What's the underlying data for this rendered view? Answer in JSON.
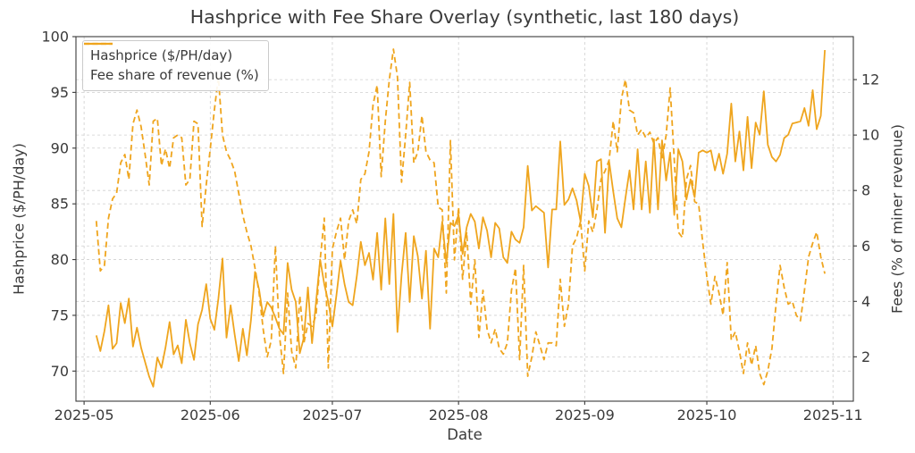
{
  "figure": {
    "title": "Hashprice with Fee Share Overlay (synthetic, last 180 days)",
    "xlabel": "Date",
    "ylabel_left": "Hashprice ($/PH/day)",
    "ylabel_right": "Fees (% of miner revenue)"
  },
  "legend": {
    "position": "upper left",
    "items": [
      {
        "label": "Hashprice ($/PH/day)",
        "style": "solid"
      },
      {
        "label": "Fee share of revenue (%)",
        "style": "dashed"
      }
    ]
  },
  "colors": {
    "line": "#EFA51E",
    "grid": "#cfcfcf",
    "spine": "#3b3b3b",
    "text": "#3a3a3a",
    "background": "#ffffff"
  },
  "chart_data": {
    "type": "line",
    "title": "Hashprice with Fee Share Overlay (synthetic, last 180 days)",
    "xlabel": "Date",
    "ylabel_left": "Hashprice ($/PH/day)",
    "ylabel_right": "Fees (% of miner revenue)",
    "grid": true,
    "x_start_date": "2025-05-04",
    "x_days_span": 180,
    "x_tick_labels": [
      "2025-05",
      "2025-06",
      "2025-07",
      "2025-08",
      "2025-09",
      "2025-10",
      "2025-11"
    ],
    "x_tick_days": [
      0,
      31,
      61,
      92,
      123,
      153,
      184
    ],
    "xlim_days": [
      -2,
      189
    ],
    "ylim_left": [
      67.3,
      100
    ],
    "yticks_left": [
      70,
      75,
      80,
      85,
      90,
      95,
      100
    ],
    "ylim_right": [
      0.4,
      13.55
    ],
    "yticks_right": [
      2,
      4,
      6,
      8,
      10,
      12
    ],
    "series": [
      {
        "name": "Hashprice ($/PH/day)",
        "axis": "left",
        "style": "solid",
        "start_day": 3,
        "values": [
          73.2,
          71.8,
          73.6,
          75.9,
          72.0,
          72.5,
          76.1,
          74.3,
          76.5,
          72.2,
          73.9,
          72.1,
          70.8,
          69.5,
          68.6,
          71.2,
          70.3,
          72.1,
          74.4,
          71.5,
          72.3,
          70.7,
          74.6,
          72.5,
          71.0,
          74.2,
          75.5,
          77.8,
          74.7,
          73.7,
          76.5,
          80.1,
          73.0,
          75.9,
          73.3,
          70.9,
          73.8,
          71.4,
          74.6,
          78.9,
          77.3,
          74.9,
          76.2,
          75.7,
          74.8,
          73.8,
          73.3,
          79.7,
          77.3,
          76.2,
          71.6,
          73.0,
          77.5,
          72.5,
          76.2,
          80.0,
          77.8,
          76.2,
          74.0,
          76.8,
          79.9,
          77.8,
          76.2,
          75.9,
          78.5,
          81.6,
          79.5,
          80.6,
          78.2,
          82.4,
          77.3,
          83.7,
          77.8,
          84.1,
          73.5,
          78.6,
          82.4,
          76.2,
          82.1,
          80.3,
          76.5,
          80.8,
          73.8,
          81.0,
          80.2,
          83.4,
          79.7,
          83.3,
          83.0,
          84.0,
          80.5,
          82.9,
          84.1,
          83.4,
          81.0,
          83.8,
          82.6,
          80.2,
          83.3,
          82.8,
          80.2,
          79.7,
          82.5,
          81.8,
          81.5,
          82.9,
          88.4,
          84.4,
          84.8,
          84.5,
          84.2,
          79.3,
          84.5,
          84.5,
          90.6,
          84.9,
          85.4,
          86.4,
          85.3,
          83.4,
          87.7,
          86.6,
          83.8,
          88.8,
          89.0,
          82.4,
          88.8,
          86.1,
          83.7,
          82.9,
          85.5,
          88.0,
          84.5,
          89.9,
          84.5,
          88.8,
          84.2,
          90.8,
          84.5,
          90.7,
          87.1,
          89.6,
          84.0,
          89.9,
          88.8,
          85.4,
          87.2,
          85.6,
          89.6,
          89.8,
          89.6,
          89.8,
          88.0,
          89.5,
          87.7,
          89.5,
          94.0,
          88.8,
          91.5,
          88.0,
          92.8,
          88.2,
          92.3,
          91.2,
          95.1,
          90.3,
          89.2,
          88.8,
          89.4,
          90.9,
          91.2,
          92.2,
          92.3,
          92.4,
          93.6,
          92.0,
          95.2,
          91.7,
          92.9,
          98.8
        ]
      },
      {
        "name": "Fee share of revenue (%)",
        "axis": "right",
        "style": "dashed",
        "start_day": 3,
        "values": [
          6.9,
          5.1,
          5.3,
          7.0,
          7.7,
          7.9,
          9.0,
          9.3,
          8.4,
          10.4,
          10.9,
          10.3,
          9.3,
          8.2,
          10.5,
          10.6,
          8.9,
          9.5,
          8.8,
          9.9,
          10.0,
          9.9,
          8.2,
          8.4,
          10.5,
          10.4,
          6.7,
          8.2,
          9.5,
          10.9,
          12.1,
          10.0,
          9.4,
          9.1,
          8.7,
          7.9,
          7.1,
          6.5,
          6.0,
          5.2,
          4.3,
          3.0,
          2.0,
          2.6,
          6.0,
          2.8,
          1.4,
          4.3,
          2.2,
          1.6,
          4.2,
          2.5,
          3.2,
          3.1,
          3.5,
          5.5,
          7.0,
          1.6,
          5.9,
          6.5,
          7.0,
          5.5,
          6.9,
          7.3,
          6.8,
          8.4,
          8.6,
          9.4,
          11.1,
          11.8,
          8.5,
          10.5,
          12.0,
          13.1,
          12.1,
          8.3,
          10.0,
          11.9,
          9.0,
          9.4,
          10.7,
          9.4,
          9.1,
          9.0,
          7.4,
          7.3,
          4.3,
          9.8,
          5.5,
          7.4,
          4.8,
          6.5,
          3.9,
          5.5,
          2.7,
          4.4,
          3.0,
          2.5,
          3.0,
          2.3,
          2.1,
          2.5,
          4.4,
          5.2,
          1.9,
          5.3,
          1.3,
          2.0,
          2.9,
          2.4,
          1.9,
          2.5,
          2.5,
          2.4,
          4.8,
          3.1,
          3.9,
          6.0,
          6.3,
          6.9,
          5.1,
          6.9,
          6.5,
          7.3,
          8.4,
          8.7,
          9.1,
          10.5,
          9.4,
          11.3,
          12.0,
          10.9,
          10.8,
          10.0,
          10.2,
          9.9,
          10.1,
          9.7,
          9.9,
          9.1,
          10.0,
          11.7,
          9.1,
          6.5,
          6.3,
          8.4,
          8.9,
          7.6,
          7.5,
          6.1,
          4.9,
          3.9,
          4.9,
          4.3,
          3.5,
          5.4,
          2.6,
          2.9,
          2.2,
          1.4,
          2.5,
          1.7,
          2.4,
          1.4,
          1.0,
          1.5,
          2.3,
          3.9,
          5.3,
          4.5,
          3.9,
          4.0,
          3.5,
          3.3,
          4.4,
          5.6,
          6.1,
          6.5,
          5.6,
          5.0
        ]
      }
    ]
  }
}
